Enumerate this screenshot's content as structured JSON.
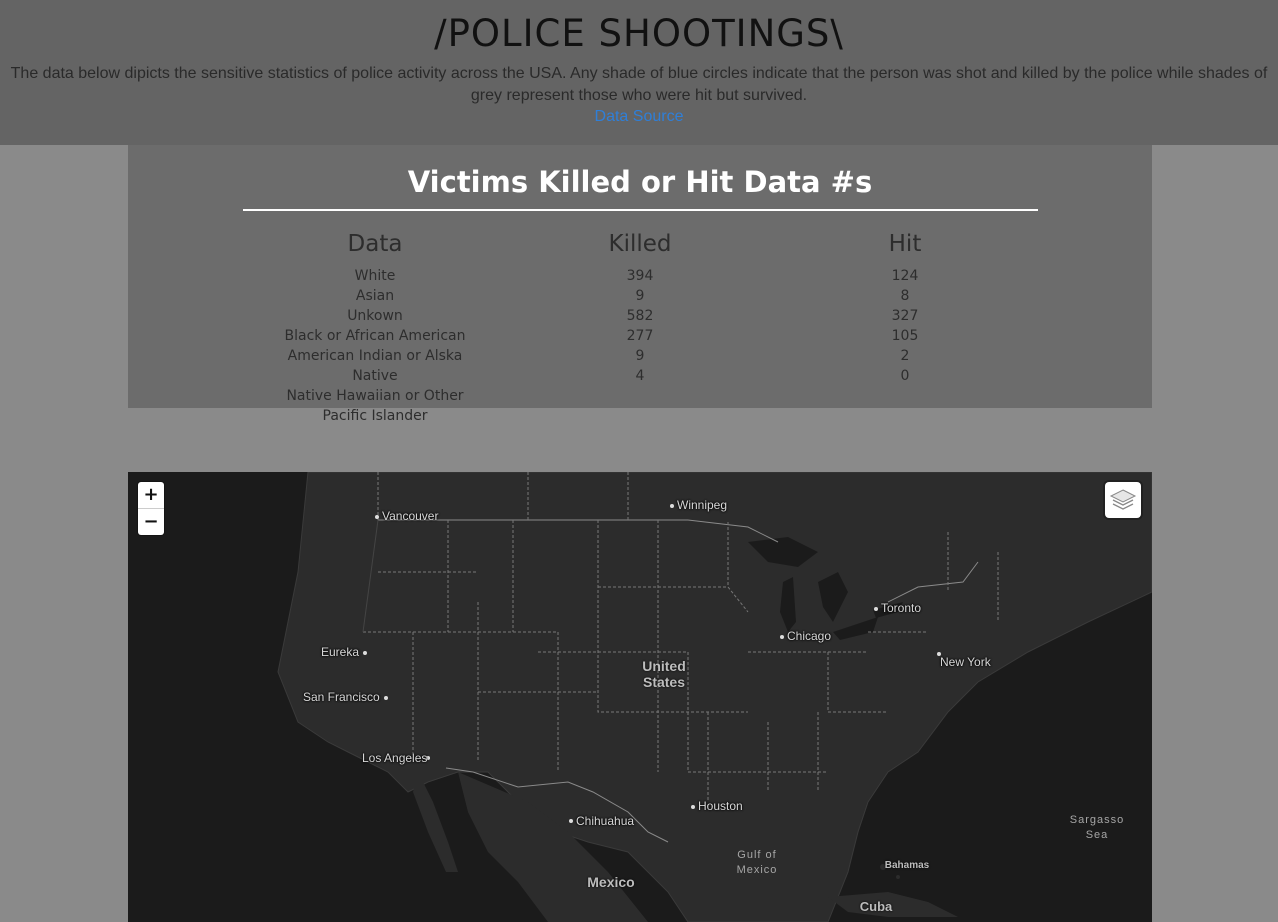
{
  "header": {
    "title": "/POLICE SHOOTINGS\\",
    "description": "The data below dipicts the sensitive statistics of police activity across the USA. Any shade of blue circles indicate that the person was shot and killed by the police while shades of grey represent those who were hit but survived.",
    "source_link": "Data Source"
  },
  "stats": {
    "title": "Victims Killed or Hit Data #s",
    "headers": [
      "Data",
      "Killed",
      "Hit"
    ],
    "rows": [
      {
        "label": "White",
        "killed": "394",
        "hit": "124"
      },
      {
        "label": "Asian",
        "killed": "9",
        "hit": "8"
      },
      {
        "label": "Unkown",
        "killed": "582",
        "hit": "327"
      },
      {
        "label": "Black or African American",
        "killed": "277",
        "hit": "105"
      },
      {
        "label": "American Indian or Alska Native",
        "killed": "9",
        "hit": "2"
      },
      {
        "label": "Native Hawaiian or Other Pacific Islander",
        "killed": "4",
        "hit": "0"
      }
    ]
  },
  "map": {
    "zoom_in": "+",
    "zoom_out": "−",
    "layers_icon": "layers-icon",
    "cities": [
      "Vancouver",
      "Winnipeg",
      "Toronto",
      "Chicago",
      "Eureka",
      "New York",
      "San Francisco",
      "Los Angeles",
      "Houston",
      "Chihuahua"
    ],
    "countries": [
      "United States",
      "Mexico",
      "Cuba",
      "Bahamas"
    ],
    "seas": [
      "Gulf of Mexico",
      "Sargasso Sea"
    ]
  },
  "colors": {
    "header_bg": "#646464",
    "panel_bg": "#6c6c6c",
    "map_bg": "#1d1d1d",
    "link": "#2f7fd8"
  }
}
